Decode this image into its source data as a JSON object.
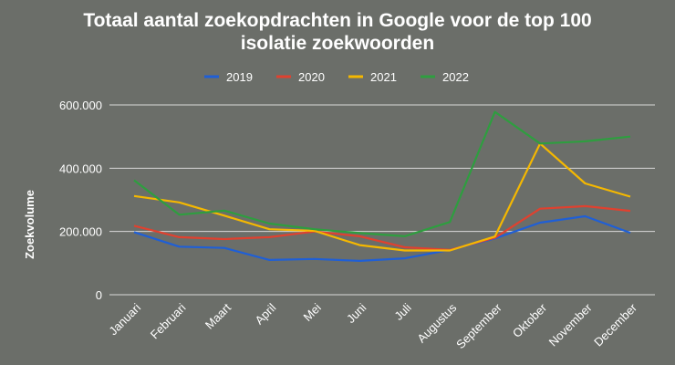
{
  "chart_data": {
    "type": "line",
    "title_lines": [
      "Totaal aantal zoekopdrachten in Google voor de top 100",
      "isolatie zoekwoorden"
    ],
    "xlabel": "",
    "ylabel": "Zoekvolume",
    "ylim": [
      0,
      600000
    ],
    "yticks": [
      {
        "value": 0,
        "label": "0"
      },
      {
        "value": 200000,
        "label": "200.000"
      },
      {
        "value": 400000,
        "label": "400.000"
      },
      {
        "value": 600000,
        "label": "600.000"
      }
    ],
    "grid": true,
    "legend_position": "top",
    "categories": [
      "Januari",
      "Februari",
      "Maart",
      "April",
      "Mei",
      "Juni",
      "Juli",
      "Augustus",
      "September",
      "Oktober",
      "November",
      "December"
    ],
    "series": [
      {
        "name": "2019",
        "color": "#1f5fd6",
        "values": [
          198000,
          152000,
          148000,
          110000,
          113000,
          107000,
          115000,
          142000,
          178000,
          228000,
          248000,
          196000
        ]
      },
      {
        "name": "2020",
        "color": "#e0412f",
        "values": [
          218000,
          182000,
          176000,
          182000,
          200000,
          185000,
          150000,
          142000,
          180000,
          272000,
          280000,
          265000
        ]
      },
      {
        "name": "2021",
        "color": "#f5b800",
        "values": [
          312000,
          292000,
          250000,
          207000,
          202000,
          157000,
          140000,
          140000,
          184000,
          478000,
          352000,
          310000
        ]
      },
      {
        "name": "2022",
        "color": "#2e9e3f",
        "values": [
          362000,
          253000,
          266000,
          225000,
          207000,
          195000,
          185000,
          230000,
          578000,
          478000,
          485000,
          500000
        ]
      }
    ]
  }
}
